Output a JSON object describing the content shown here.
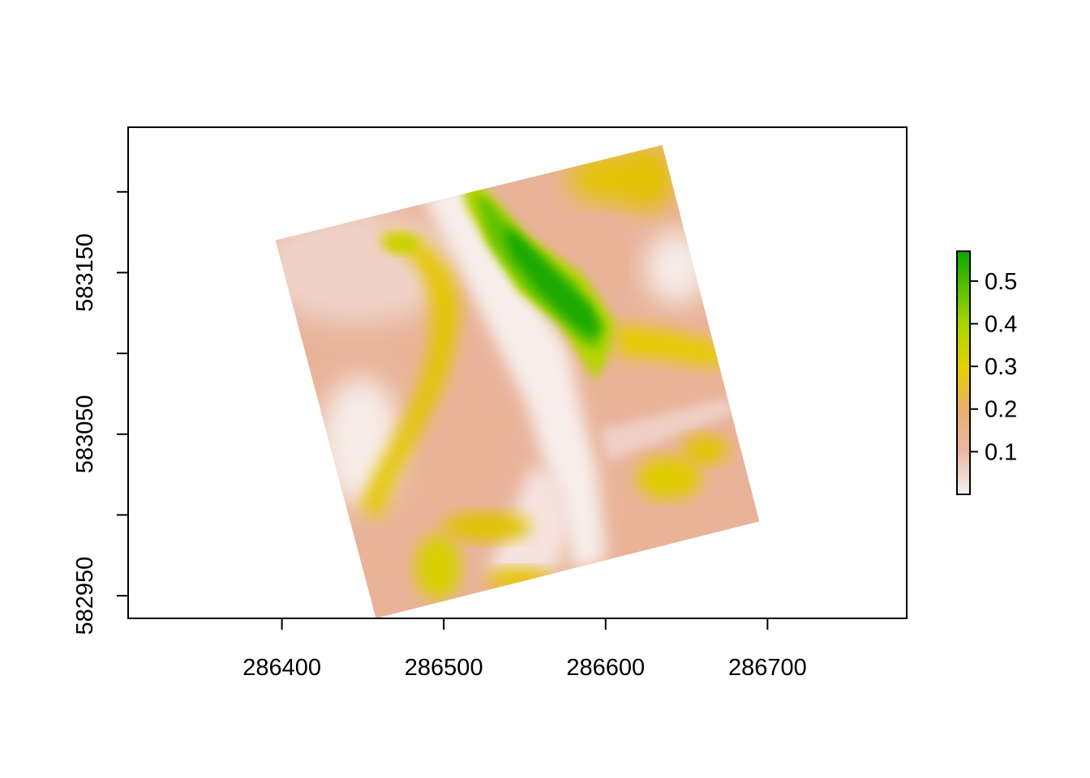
{
  "chart_data": {
    "type": "heatmap",
    "title": "",
    "xlabel": "",
    "ylabel": "",
    "xlim": [
      286305,
      286786
    ],
    "ylim": [
      582936,
      583240
    ],
    "x_ticks": [
      {
        "value": 286400,
        "label": "286400"
      },
      {
        "value": 286500,
        "label": "286500"
      },
      {
        "value": 286600,
        "label": "286600"
      },
      {
        "value": 286700,
        "label": "286700"
      }
    ],
    "y_ticks": [
      {
        "value": 582950,
        "label": "582950",
        "show_label": true
      },
      {
        "value": 583000,
        "label": "583000",
        "show_label": false
      },
      {
        "value": 583050,
        "label": "583050",
        "show_label": true
      },
      {
        "value": 583100,
        "label": "583100",
        "show_label": false
      },
      {
        "value": 583150,
        "label": "583150",
        "show_label": true
      },
      {
        "value": 583200,
        "label": "583200",
        "show_label": false
      }
    ],
    "raster_corners": [
      {
        "x": 286396,
        "y": 583170
      },
      {
        "x": 286635,
        "y": 583229
      },
      {
        "x": 286695,
        "y": 582996
      },
      {
        "x": 286458,
        "y": 582936
      }
    ],
    "features": [
      {
        "name": "main-green-ridge",
        "center": [
          286572,
          583133
        ],
        "value": 0.56
      },
      {
        "name": "left-yellow-band",
        "center": [
          286495,
          583115
        ],
        "value": 0.3
      },
      {
        "name": "right-yellow-band",
        "center": [
          286625,
          583096
        ],
        "value": 0.3
      },
      {
        "name": "bottom-yellow-patch",
        "center": [
          286500,
          582965
        ],
        "value": 0.3
      },
      {
        "name": "lower-right-yellow-patch",
        "center": [
          286645,
          583012
        ],
        "value": 0.32
      },
      {
        "name": "central-white-valley",
        "center": [
          286580,
          583060
        ],
        "value": 0.02
      }
    ],
    "legend": {
      "min": 0.0,
      "max": 0.57,
      "colors": [
        "#f2f2f2",
        "#ebb6a2",
        "#e8b070",
        "#e6cf00",
        "#a8d600",
        "#0aa800"
      ],
      "ticks": [
        {
          "value": 0.1,
          "label": "0.1"
        },
        {
          "value": 0.2,
          "label": "0.2"
        },
        {
          "value": 0.3,
          "label": "0.3"
        },
        {
          "value": 0.4,
          "label": "0.4"
        },
        {
          "value": 0.5,
          "label": "0.5"
        }
      ],
      "placement": "right"
    }
  }
}
